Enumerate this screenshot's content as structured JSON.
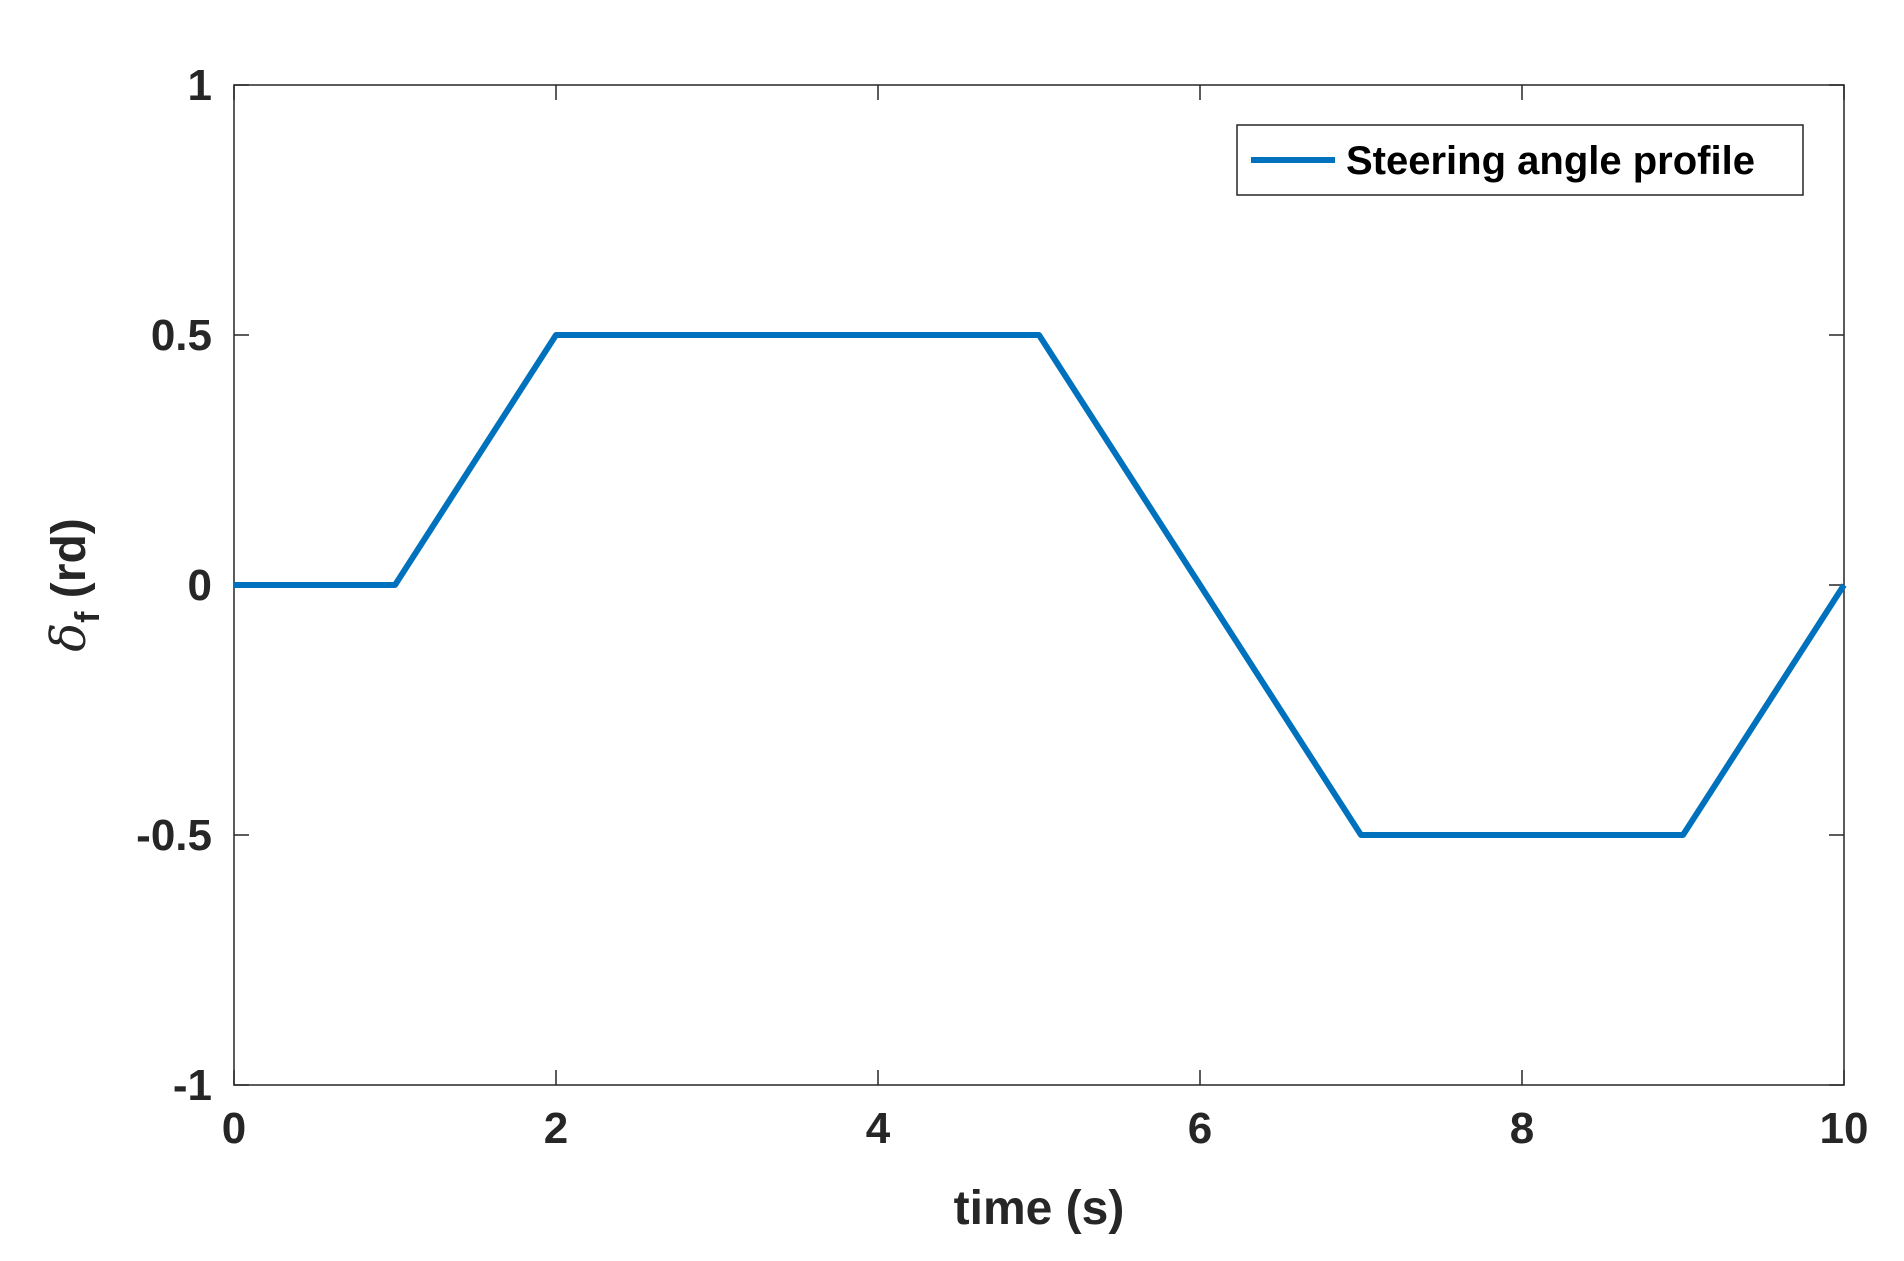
{
  "chart_data": {
    "type": "line",
    "title": "",
    "xlabel": "time (s)",
    "ylabel_symbol": "δ",
    "ylabel_subscript": "f",
    "ylabel_unit": " (rd)",
    "xlim": [
      0,
      10
    ],
    "ylim": [
      -1,
      1
    ],
    "x_ticks": [
      0,
      2,
      4,
      6,
      8,
      10
    ],
    "x_tick_labels": [
      "0",
      "2",
      "4",
      "6",
      "8",
      "10"
    ],
    "y_ticks": [
      -1,
      -0.5,
      0,
      0.5,
      1
    ],
    "y_tick_labels": [
      "-1",
      "-0.5",
      "0",
      "0.5",
      "1"
    ],
    "grid": false,
    "legend_position": "top-right",
    "series": [
      {
        "name": "Steering angle profile",
        "color": "#0072BD",
        "x": [
          0,
          1,
          2,
          5,
          7,
          9,
          10
        ],
        "y": [
          0,
          0,
          0.5,
          0.5,
          -0.5,
          -0.5,
          0
        ]
      }
    ]
  }
}
